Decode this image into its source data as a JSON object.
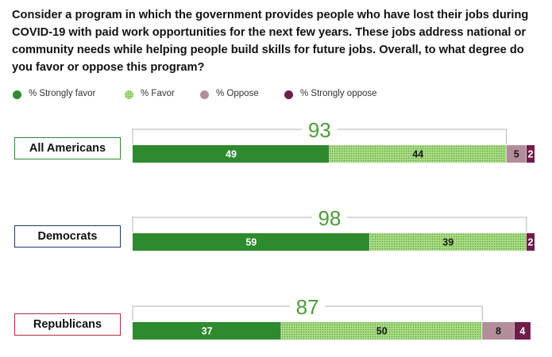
{
  "title": "Consider a program in which the government provides people who have lost their jobs during COVID-19 with paid work opportunities for the next few years. These jobs address national or community needs while helping people build skills for future jobs. Overall, to what degree do you favor or oppose this program?",
  "legend": [
    {
      "label": "% Strongly favor",
      "color": "#2e8a2e",
      "pattern": "solid"
    },
    {
      "label": "% Favor",
      "color": "#a8dd83",
      "pattern": "dots"
    },
    {
      "label": "% Oppose",
      "color": "#b48d9b",
      "pattern": "solid"
    },
    {
      "label": "% Strongly oppose",
      "color": "#6f1d4b",
      "pattern": "solid"
    }
  ],
  "groups": [
    {
      "label": "All Americans",
      "border_color": "#2e8a2e"
    },
    {
      "label": "Democrats",
      "border_color": "#1c3b6e"
    },
    {
      "label": "Republicans",
      "border_color": "#b52b35"
    }
  ],
  "chart_data": {
    "type": "bar",
    "orientation": "horizontal",
    "stacked": true,
    "categories": [
      "All Americans",
      "Democrats",
      "Republicans"
    ],
    "series": [
      {
        "name": "% Strongly favor",
        "values": [
          49,
          59,
          37
        ]
      },
      {
        "name": "% Favor",
        "values": [
          44,
          39,
          50
        ]
      },
      {
        "name": "% Oppose",
        "values": [
          5,
          0,
          8
        ]
      },
      {
        "name": "% Strongly oppose",
        "values": [
          2,
          2,
          4
        ]
      }
    ],
    "totals_favor": [
      93,
      98,
      87
    ],
    "total_color": "#4e9b3c",
    "xlim": [
      0,
      100
    ],
    "legend_position": "top"
  }
}
